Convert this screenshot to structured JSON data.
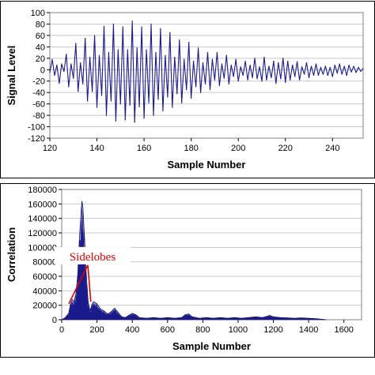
{
  "chart_data": [
    {
      "type": "line",
      "title": "",
      "xlabel": "Sample Number",
      "ylabel": "Signal Level",
      "xlim": [
        120,
        253
      ],
      "ylim": [
        -120,
        100
      ],
      "xticks": [
        120,
        140,
        160,
        180,
        200,
        220,
        240
      ],
      "yticks": [
        100,
        80,
        60,
        40,
        20,
        0,
        -20,
        -40,
        -60,
        -80,
        -100,
        -120
      ],
      "grid": "horizontal",
      "series": [
        {
          "color": "#1a1a8c",
          "points": [
            [
              120,
              -5
            ],
            [
              121,
              18
            ],
            [
              122,
              -10
            ],
            [
              123,
              8
            ],
            [
              124,
              -24
            ],
            [
              125,
              10
            ],
            [
              126,
              -3
            ],
            [
              127,
              27
            ],
            [
              128,
              -30
            ],
            [
              129,
              10
            ],
            [
              130,
              -15
            ],
            [
              131,
              46
            ],
            [
              132,
              -38
            ],
            [
              133,
              12
            ],
            [
              134,
              -25
            ],
            [
              135,
              55
            ],
            [
              136,
              -55
            ],
            [
              137,
              22
            ],
            [
              138,
              -38
            ],
            [
              139,
              60
            ],
            [
              140,
              -66
            ],
            [
              141,
              25
            ],
            [
              142,
              -45
            ],
            [
              143,
              76
            ],
            [
              144,
              -80
            ],
            [
              145,
              30
            ],
            [
              146,
              -55
            ],
            [
              147,
              80
            ],
            [
              148,
              -90
            ],
            [
              149,
              35
            ],
            [
              150,
              -60
            ],
            [
              151,
              75
            ],
            [
              152,
              -88
            ],
            [
              153,
              35
            ],
            [
              154,
              -62
            ],
            [
              155,
              85
            ],
            [
              156,
              -92
            ],
            [
              157,
              38
            ],
            [
              158,
              -65
            ],
            [
              159,
              75
            ],
            [
              160,
              -85
            ],
            [
              161,
              35
            ],
            [
              162,
              -58
            ],
            [
              163,
              80
            ],
            [
              164,
              -80
            ],
            [
              165,
              30
            ],
            [
              166,
              -52
            ],
            [
              167,
              72
            ],
            [
              168,
              -72
            ],
            [
              169,
              25
            ],
            [
              170,
              -48
            ],
            [
              171,
              65
            ],
            [
              172,
              -66
            ],
            [
              173,
              22
            ],
            [
              174,
              -42
            ],
            [
              175,
              52
            ],
            [
              176,
              -58
            ],
            [
              177,
              18
            ],
            [
              178,
              -35
            ],
            [
              179,
              48
            ],
            [
              180,
              -50
            ],
            [
              181,
              15
            ],
            [
              182,
              -30
            ],
            [
              183,
              38
            ],
            [
              184,
              -40
            ],
            [
              185,
              12
            ],
            [
              186,
              -25
            ],
            [
              187,
              30
            ],
            [
              188,
              -35
            ],
            [
              189,
              18
            ],
            [
              190,
              -18
            ],
            [
              191,
              30
            ],
            [
              192,
              -28
            ],
            [
              193,
              10
            ],
            [
              194,
              -15
            ],
            [
              195,
              25
            ],
            [
              196,
              -25
            ],
            [
              197,
              8
            ],
            [
              198,
              -12
            ],
            [
              199,
              18
            ],
            [
              200,
              -20
            ],
            [
              201,
              5
            ],
            [
              202,
              -10
            ],
            [
              203,
              15
            ],
            [
              204,
              -18
            ],
            [
              205,
              8
            ],
            [
              206,
              -14
            ],
            [
              207,
              20
            ],
            [
              208,
              -16
            ],
            [
              209,
              5
            ],
            [
              210,
              -20
            ],
            [
              211,
              22
            ],
            [
              212,
              -18
            ],
            [
              213,
              6
            ],
            [
              214,
              -14
            ],
            [
              215,
              15
            ],
            [
              216,
              -24
            ],
            [
              217,
              12
            ],
            [
              218,
              -16
            ],
            [
              219,
              20
            ],
            [
              220,
              -22
            ],
            [
              221,
              15
            ],
            [
              222,
              -18
            ],
            [
              223,
              8
            ],
            [
              224,
              -12
            ],
            [
              225,
              14
            ],
            [
              226,
              -18
            ],
            [
              227,
              5
            ],
            [
              228,
              -8
            ],
            [
              229,
              12
            ],
            [
              230,
              -14
            ],
            [
              231,
              6
            ],
            [
              232,
              -10
            ],
            [
              233,
              10
            ],
            [
              234,
              -10
            ],
            [
              235,
              4
            ],
            [
              236,
              -8
            ],
            [
              237,
              6
            ],
            [
              238,
              -10
            ],
            [
              239,
              4
            ],
            [
              240,
              -12
            ],
            [
              241,
              8
            ],
            [
              242,
              -6
            ],
            [
              243,
              10
            ],
            [
              244,
              -8
            ],
            [
              245,
              6
            ],
            [
              246,
              -10
            ],
            [
              247,
              8
            ],
            [
              248,
              -4
            ],
            [
              249,
              6
            ],
            [
              250,
              -5
            ],
            [
              251,
              4
            ],
            [
              252,
              -3
            ],
            [
              253,
              2
            ]
          ]
        }
      ]
    },
    {
      "type": "area",
      "title": "",
      "xlabel": "Sample Number",
      "ylabel": "Correlation",
      "xlim": [
        0,
        1700
      ],
      "ylim": [
        0,
        180000
      ],
      "xticks": [
        0,
        200,
        400,
        600,
        800,
        1000,
        1200,
        1400,
        1600
      ],
      "yticks": [
        180000,
        160000,
        140000,
        120000,
        100000,
        80000,
        60000,
        40000,
        20000,
        0
      ],
      "grid": "horizontal",
      "series": [
        {
          "color": "#1a1a8c",
          "envelope": [
            [
              0,
              0
            ],
            [
              20,
              3000
            ],
            [
              40,
              9000
            ],
            [
              50,
              22000
            ],
            [
              60,
              28000
            ],
            [
              70,
              25000
            ],
            [
              80,
              35000
            ],
            [
              90,
              60000
            ],
            [
              100,
              110000
            ],
            [
              110,
              150000
            ],
            [
              115,
              164000
            ],
            [
              120,
              155000
            ],
            [
              130,
              110000
            ],
            [
              140,
              60000
            ],
            [
              150,
              25000
            ],
            [
              160,
              12000
            ],
            [
              170,
              20000
            ],
            [
              180,
              25000
            ],
            [
              200,
              22000
            ],
            [
              220,
              15000
            ],
            [
              240,
              12000
            ],
            [
              260,
              8000
            ],
            [
              280,
              11000
            ],
            [
              300,
              16000
            ],
            [
              320,
              10000
            ],
            [
              340,
              4000
            ],
            [
              360,
              3000
            ],
            [
              380,
              6000
            ],
            [
              400,
              9000
            ],
            [
              420,
              7000
            ],
            [
              440,
              3000
            ],
            [
              480,
              2000
            ],
            [
              520,
              3000
            ],
            [
              560,
              2000
            ],
            [
              600,
              3000
            ],
            [
              640,
              2000
            ],
            [
              680,
              3000
            ],
            [
              700,
              7000
            ],
            [
              720,
              8000
            ],
            [
              740,
              4000
            ],
            [
              780,
              2000
            ],
            [
              820,
              3000
            ],
            [
              860,
              2000
            ],
            [
              900,
              3000
            ],
            [
              940,
              2000
            ],
            [
              980,
              3000
            ],
            [
              1020,
              2000
            ],
            [
              1060,
              3000
            ],
            [
              1100,
              4000
            ],
            [
              1140,
              3000
            ],
            [
              1180,
              6000
            ],
            [
              1200,
              4000
            ],
            [
              1240,
              3000
            ],
            [
              1280,
              2500
            ],
            [
              1320,
              2000
            ],
            [
              1360,
              2500
            ],
            [
              1400,
              2000
            ],
            [
              1440,
              1500
            ],
            [
              1470,
              800
            ],
            [
              1500,
              0
            ]
          ]
        }
      ],
      "annotations": [
        {
          "text": "Sidelobes",
          "at": [
            175,
            82000
          ],
          "arrows_to": [
            [
              40,
              22000
            ],
            [
              165,
              25000
            ]
          ]
        }
      ]
    }
  ]
}
